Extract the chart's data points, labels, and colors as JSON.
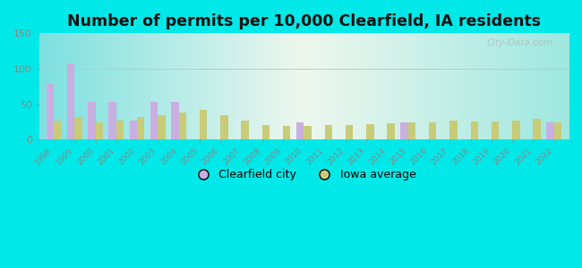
{
  "title": "Number of permits per 10,000 Clearfield, IA residents",
  "years": [
    1998,
    1999,
    2000,
    2001,
    2002,
    2003,
    2004,
    2005,
    2006,
    2007,
    2008,
    2009,
    2010,
    2011,
    2012,
    2013,
    2014,
    2015,
    2016,
    2017,
    2018,
    2019,
    2020,
    2021,
    2022
  ],
  "clearfield": [
    78,
    108,
    54,
    54,
    27,
    54,
    54,
    0,
    0,
    0,
    0,
    0,
    25,
    0,
    0,
    0,
    0,
    25,
    0,
    0,
    0,
    0,
    0,
    0,
    25
  ],
  "iowa": [
    27,
    32,
    25,
    27,
    32,
    35,
    38,
    42,
    35,
    27,
    20,
    19,
    19,
    20,
    21,
    22,
    23,
    24,
    25,
    27,
    26,
    26,
    27,
    30,
    25
  ],
  "clearfield_color": "#c9aee0",
  "iowa_color": "#c8cc78",
  "ylim": [
    0,
    150
  ],
  "yticks": [
    0,
    50,
    100,
    150
  ],
  "outer_bg": "#00e8e8",
  "title_fontsize": 12.5,
  "bar_width": 0.36,
  "watermark": "City-Data.com",
  "bg_left": "#7de8e8",
  "bg_center": "#e8f5e8",
  "bg_right": "#a0ede8"
}
